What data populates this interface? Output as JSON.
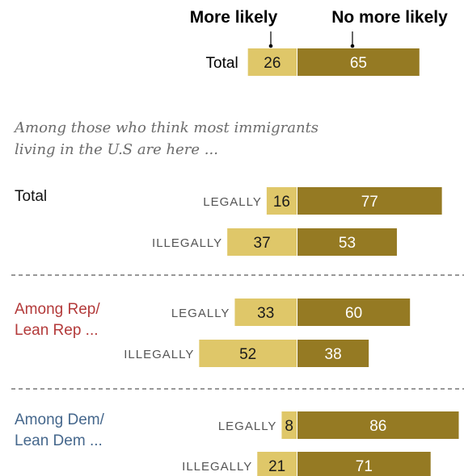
{
  "colors": {
    "more_likely": "#dfc769",
    "no_more_likely": "#957a23",
    "rep": "#b33a3a",
    "dem": "#45678c",
    "default_group": "#111111",
    "divider": "#8a8a8a"
  },
  "chart_data": {
    "type": "bar",
    "orientation": "horizontal",
    "stacked": "diverging",
    "legend": {
      "more_likely": "More likely",
      "no_more_likely": "No more likely"
    },
    "subtitle_lines": [
      "Among those who think most immigrants",
      "living in the U.S are here ..."
    ],
    "total": {
      "label": "Total",
      "more_likely": 26,
      "no_more_likely": 65
    },
    "groups": [
      {
        "id": "total",
        "label_lines": [
          "Total"
        ],
        "color_key": "default_group",
        "rows": [
          {
            "category": "LEGALLY",
            "more_likely": 16,
            "no_more_likely": 77
          },
          {
            "category": "ILLEGALLY",
            "more_likely": 37,
            "no_more_likely": 53
          }
        ]
      },
      {
        "id": "rep",
        "label_lines": [
          "Among Rep/",
          "Lean Rep ..."
        ],
        "color_key": "rep",
        "rows": [
          {
            "category": "LEGALLY",
            "more_likely": 33,
            "no_more_likely": 60
          },
          {
            "category": "ILLEGALLY",
            "more_likely": 52,
            "no_more_likely": 38
          }
        ]
      },
      {
        "id": "dem",
        "label_lines": [
          "Among Dem/",
          "Lean Dem ..."
        ],
        "color_key": "dem",
        "rows": [
          {
            "category": "LEGALLY",
            "more_likely": 8,
            "no_more_likely": 86
          },
          {
            "category": "ILLEGALLY",
            "more_likely": 21,
            "no_more_likely": 71
          }
        ]
      }
    ]
  }
}
